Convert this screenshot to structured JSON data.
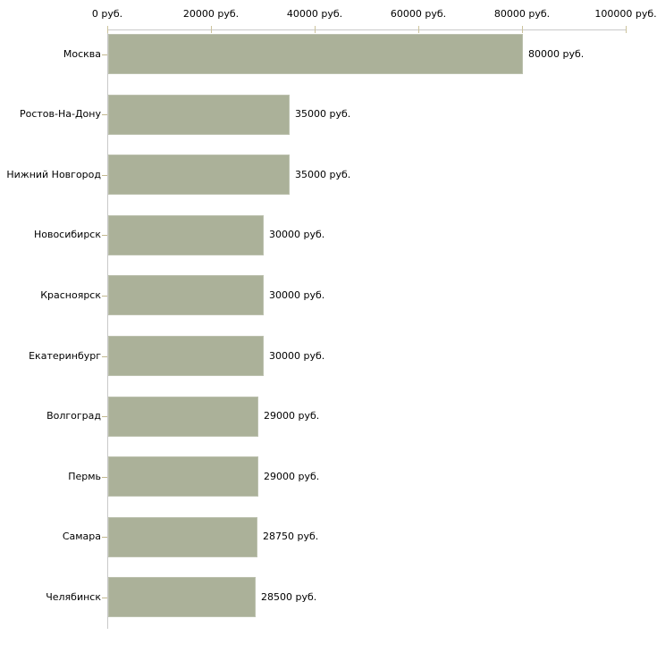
{
  "chart_data": {
    "type": "bar",
    "orientation": "horizontal",
    "title": "",
    "xlabel": "",
    "ylabel": "",
    "categories": [
      "Москва",
      "Ростов-На-Дону",
      "Нижний Новгород",
      "Новосибирск",
      "Красноярск",
      "Екатеринбург",
      "Волгоград",
      "Пермь",
      "Самара",
      "Челябинск"
    ],
    "values": [
      80000,
      35000,
      35000,
      30000,
      30000,
      30000,
      29000,
      29000,
      28750,
      28500
    ],
    "value_labels": [
      "80000 руб.",
      "35000 руб.",
      "35000 руб.",
      "30000 руб.",
      "30000 руб.",
      "30000 руб.",
      "29000 руб.",
      "29000 руб.",
      "28750 руб.",
      "28500 руб."
    ],
    "x_axis": {
      "min": 0,
      "max": 100000,
      "ticks": [
        0,
        20000,
        40000,
        60000,
        80000,
        100000
      ],
      "tick_labels": [
        "0 руб.",
        "20000 руб.",
        "40000 руб.",
        "60000 руб.",
        "80000 руб.",
        "100000 руб."
      ],
      "position": "top"
    },
    "legend": "none",
    "grid": false,
    "colors": {
      "bar_fill": "#abb199",
      "bar_border": "#bcc1ae",
      "axis_line": "#c9c9c9",
      "x_tick": "#ccc39c",
      "category_tick": "#c2b88f",
      "text": "#000000",
      "background": "#ffffff"
    }
  }
}
